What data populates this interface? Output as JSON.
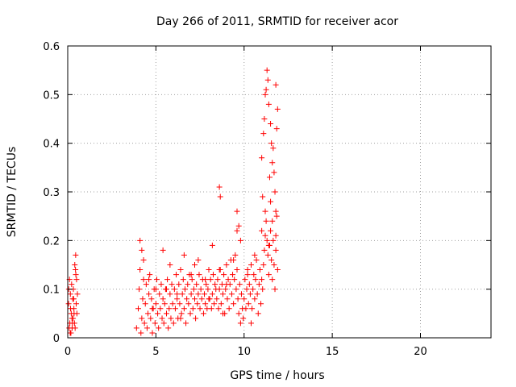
{
  "chart_data": {
    "type": "scatter",
    "title": "Day 266 of 2011, SRMTID for receiver acor",
    "xlabel": "GPS time / hours",
    "ylabel": "SRMTID / TECUs",
    "xlim": [
      0,
      24
    ],
    "ylim": [
      0,
      0.6
    ],
    "x_ticks": [
      0,
      5,
      10,
      15,
      20
    ],
    "x_tick_labels": [
      "0",
      "5",
      "10",
      "15",
      "20"
    ],
    "y_ticks": [
      0,
      0.1,
      0.2,
      0.3,
      0.4,
      0.5,
      0.6
    ],
    "y_tick_labels": [
      "0",
      "0.1",
      "0.2",
      "0.3",
      "0.4",
      "0.5",
      "0.6"
    ],
    "grid": true,
    "marker": "plus",
    "series": [
      {
        "name": "SRMTID",
        "color": "#ff0000",
        "x": [
          0.05,
          0.1,
          0.12,
          0.15,
          0.18,
          0.2,
          0.22,
          0.25,
          0.28,
          0.3,
          0.32,
          0.35,
          0.38,
          0.4,
          0.42,
          0.45,
          0.48,
          0.5,
          0.52,
          0.55,
          0.08,
          0.16,
          0.24,
          0.34,
          0.44,
          0.06,
          0.14,
          0.26,
          0.36,
          0.46,
          3.9,
          4.0,
          4.05,
          4.1,
          4.15,
          4.2,
          4.25,
          4.3,
          4.35,
          4.4,
          4.45,
          4.5,
          4.55,
          4.6,
          4.65,
          4.7,
          4.75,
          4.8,
          4.85,
          4.9,
          4.95,
          5.0,
          5.05,
          5.1,
          5.15,
          5.2,
          5.25,
          5.3,
          5.35,
          5.4,
          5.45,
          5.5,
          5.55,
          5.6,
          5.65,
          5.7,
          5.75,
          5.8,
          5.85,
          5.9,
          5.95,
          6.0,
          6.05,
          6.1,
          6.15,
          6.2,
          6.25,
          6.3,
          6.35,
          6.4,
          6.45,
          6.5,
          6.55,
          6.6,
          6.65,
          6.7,
          6.75,
          6.8,
          6.85,
          6.9,
          6.95,
          7.0,
          7.05,
          7.1,
          7.15,
          7.2,
          7.25,
          7.3,
          7.35,
          7.4,
          7.45,
          7.5,
          7.55,
          7.6,
          7.65,
          7.7,
          7.75,
          7.8,
          7.85,
          7.9,
          7.95,
          8.0,
          8.05,
          8.1,
          8.15,
          8.2,
          8.25,
          8.3,
          8.35,
          8.4,
          8.45,
          8.5,
          8.55,
          8.6,
          8.65,
          8.7,
          8.75,
          8.8,
          8.85,
          8.9,
          8.95,
          9.0,
          9.05,
          9.1,
          9.15,
          9.2,
          9.25,
          9.3,
          9.35,
          9.4,
          9.45,
          9.5,
          9.55,
          9.6,
          9.65,
          9.7,
          9.75,
          9.8,
          9.85,
          9.9,
          9.95,
          10.0,
          10.05,
          10.1,
          10.15,
          10.2,
          10.25,
          10.3,
          10.35,
          10.4,
          10.45,
          10.5,
          10.55,
          10.6,
          10.65,
          10.7,
          10.75,
          10.8,
          10.85,
          10.9,
          10.95,
          11.0,
          11.05,
          11.1,
          11.15,
          11.2,
          11.25,
          11.3,
          11.35,
          11.4,
          11.45,
          11.5,
          11.55,
          11.6,
          11.65,
          11.7,
          11.75,
          11.8,
          11.85,
          11.9,
          4.1,
          4.3,
          4.6,
          5.0,
          5.4,
          5.8,
          6.2,
          6.6,
          7.0,
          7.4,
          7.8,
          8.2,
          8.6,
          9.0,
          9.4,
          9.8,
          10.2,
          10.6,
          11.0,
          11.4,
          4.2,
          4.8,
          5.6,
          6.4,
          7.2,
          8.0,
          8.8,
          9.6,
          10.4,
          11.2,
          11.6,
          11.8,
          8.6,
          8.65,
          9.6,
          9.7,
          11.0,
          11.1,
          11.15,
          11.2,
          11.3,
          11.35,
          11.4,
          11.5,
          11.55,
          11.6,
          11.7,
          11.75,
          11.8,
          11.85,
          11.9,
          11.25,
          11.45,
          11.65,
          11.05,
          11.5,
          11.8
        ],
        "y": [
          0.07,
          0.12,
          0.03,
          0.09,
          0.01,
          0.05,
          0.11,
          0.02,
          0.08,
          0.04,
          0.1,
          0.06,
          0.03,
          0.15,
          0.02,
          0.17,
          0.07,
          0.12,
          0.05,
          0.09,
          0.02,
          0.06,
          0.04,
          0.08,
          0.14,
          0.1,
          0.01,
          0.03,
          0.05,
          0.13,
          0.02,
          0.06,
          0.1,
          0.14,
          0.01,
          0.04,
          0.08,
          0.12,
          0.03,
          0.07,
          0.11,
          0.02,
          0.05,
          0.09,
          0.13,
          0.04,
          0.08,
          0.01,
          0.06,
          0.1,
          0.03,
          0.07,
          0.12,
          0.05,
          0.02,
          0.09,
          0.06,
          0.11,
          0.04,
          0.08,
          0.03,
          0.07,
          0.1,
          0.05,
          0.12,
          0.02,
          0.06,
          0.09,
          0.04,
          0.11,
          0.07,
          0.03,
          0.1,
          0.06,
          0.13,
          0.08,
          0.04,
          0.11,
          0.07,
          0.14,
          0.05,
          0.09,
          0.12,
          0.06,
          0.1,
          0.03,
          0.08,
          0.11,
          0.07,
          0.13,
          0.05,
          0.09,
          0.12,
          0.06,
          0.1,
          0.08,
          0.04,
          0.11,
          0.07,
          0.09,
          0.13,
          0.06,
          0.1,
          0.08,
          0.12,
          0.05,
          0.09,
          0.07,
          0.11,
          0.06,
          0.1,
          0.14,
          0.08,
          0.12,
          0.06,
          0.09,
          0.13,
          0.07,
          0.11,
          0.1,
          0.08,
          0.12,
          0.06,
          0.1,
          0.14,
          0.07,
          0.11,
          0.09,
          0.13,
          0.05,
          0.1,
          0.15,
          0.08,
          0.12,
          0.06,
          0.11,
          0.16,
          0.09,
          0.13,
          0.07,
          0.12,
          0.17,
          0.1,
          0.14,
          0.08,
          0.05,
          0.11,
          0.03,
          0.09,
          0.06,
          0.04,
          0.08,
          0.12,
          0.06,
          0.1,
          0.14,
          0.07,
          0.11,
          0.09,
          0.15,
          0.06,
          0.1,
          0.13,
          0.08,
          0.12,
          0.16,
          0.09,
          0.05,
          0.11,
          0.14,
          0.07,
          0.12,
          0.1,
          0.15,
          0.18,
          0.21,
          0.24,
          0.2,
          0.17,
          0.13,
          0.19,
          0.22,
          0.16,
          0.12,
          0.2,
          0.15,
          0.1,
          0.18,
          0.25,
          0.14,
          0.2,
          0.16,
          0.12,
          0.1,
          0.18,
          0.15,
          0.09,
          0.17,
          0.13,
          0.16,
          0.12,
          0.19,
          0.14,
          0.11,
          0.16,
          0.2,
          0.13,
          0.17,
          0.22,
          0.19,
          0.18,
          0.06,
          0.1,
          0.04,
          0.15,
          0.08,
          0.05,
          0.22,
          0.03,
          0.26,
          0.24,
          0.21,
          0.31,
          0.29,
          0.26,
          0.23,
          0.37,
          0.42,
          0.45,
          0.5,
          0.55,
          0.53,
          0.48,
          0.44,
          0.4,
          0.36,
          0.34,
          0.3,
          0.52,
          0.43,
          0.47,
          0.51,
          0.33,
          0.39,
          0.29,
          0.28,
          0.26
        ]
      }
    ]
  }
}
